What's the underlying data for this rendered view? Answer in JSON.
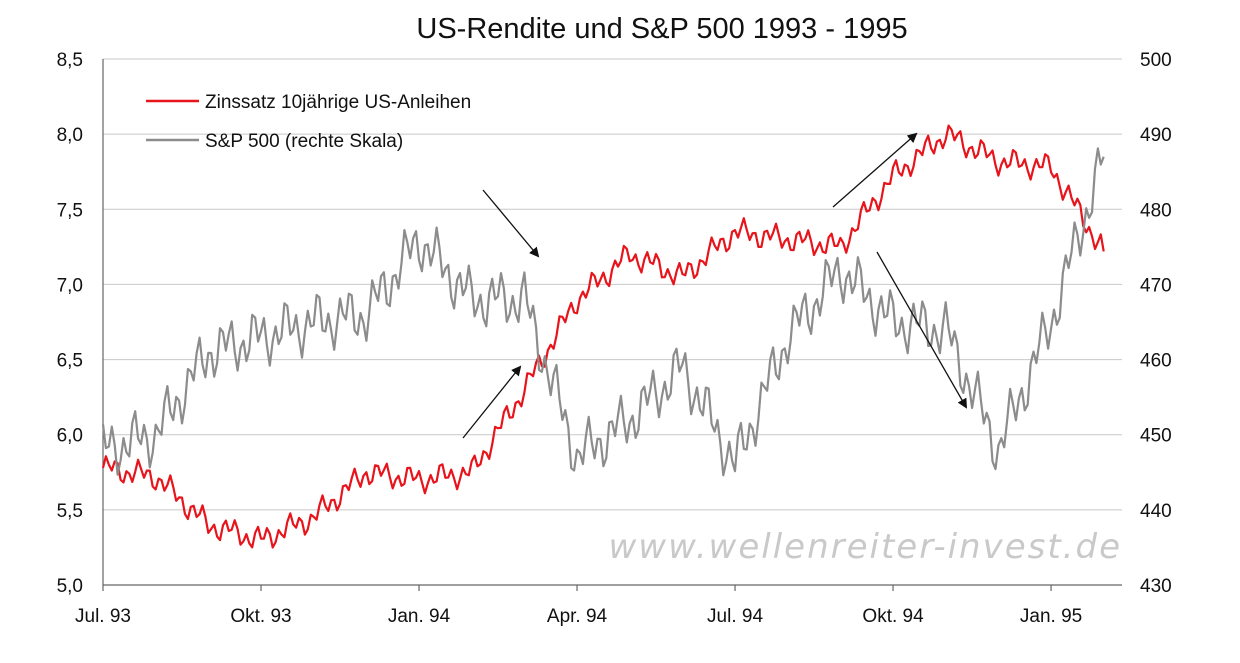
{
  "chart_data": {
    "type": "line",
    "title": "US-Rendite und S&P 500 1993 - 1995",
    "x_tick_labels": [
      "Jul. 93",
      "Okt. 93",
      "Jan. 94",
      "Apr. 94",
      "Jul. 94",
      "Okt. 94",
      "Jan. 95"
    ],
    "x_range": [
      "Jul. 93",
      "Feb. 95"
    ],
    "y_left": {
      "range": [
        5.0,
        8.5
      ],
      "ticks": [
        "5,0",
        "5,5",
        "6,0",
        "6,5",
        "7,0",
        "7,5",
        "8,0",
        "8,5"
      ],
      "tick_values": [
        5.0,
        5.5,
        6.0,
        6.5,
        7.0,
        7.5,
        8.0,
        8.5
      ]
    },
    "y_right": {
      "range": [
        430,
        500
      ],
      "ticks": [
        "430",
        "440",
        "450",
        "460",
        "470",
        "480",
        "490",
        "500"
      ],
      "tick_values": [
        430,
        440,
        450,
        460,
        470,
        480,
        490,
        500
      ]
    },
    "grid": "horizontal",
    "legend_position": "top-left",
    "series": [
      {
        "name": "Zinssatz 10jährige US-Anleihen",
        "axis": "left",
        "color": "#e8141b",
        "x": [
          "Jul. 93",
          "Aug. 93",
          "Sep. 93",
          "Okt. 93",
          "Nov. 93",
          "Dez. 93",
          "Jan. 94",
          "Feb. 94",
          "Mär. 94",
          "Apr. 94",
          "Mai 94",
          "Jun. 94",
          "Jul. 94",
          "Aug. 94",
          "Sep. 94",
          "Okt. 94",
          "Nov. 94",
          "Dez. 94",
          "Jan. 95",
          "Feb. 95"
        ],
        "values": [
          5.78,
          5.72,
          5.4,
          5.3,
          5.45,
          5.75,
          5.7,
          5.75,
          6.3,
          6.9,
          7.2,
          7.05,
          7.35,
          7.3,
          7.25,
          7.72,
          8.0,
          7.82,
          7.78,
          7.22
        ]
      },
      {
        "name": "S&P 500 (rechte Skala)",
        "axis": "right",
        "color": "#8c8c8c",
        "x": [
          "Jul. 93",
          "Aug. 93",
          "Sep. 93",
          "Okt. 93",
          "Nov. 93",
          "Dez. 93",
          "Jan. 94",
          "Feb. 94",
          "Mär. 94",
          "Apr. 94",
          "Mai 94",
          "Jun. 94",
          "Jul. 94",
          "Aug. 94",
          "Sep. 94",
          "Okt. 94",
          "Nov. 94",
          "Dez. 94",
          "Jan. 95",
          "Feb. 95"
        ],
        "values": [
          448,
          450,
          461,
          463,
          465,
          466,
          476,
          468,
          468,
          447,
          452,
          459,
          446,
          463,
          472,
          465,
          464,
          448,
          465,
          487
        ]
      }
    ],
    "arrows": 4,
    "watermark": "www.wellenreiter-invest.de"
  }
}
